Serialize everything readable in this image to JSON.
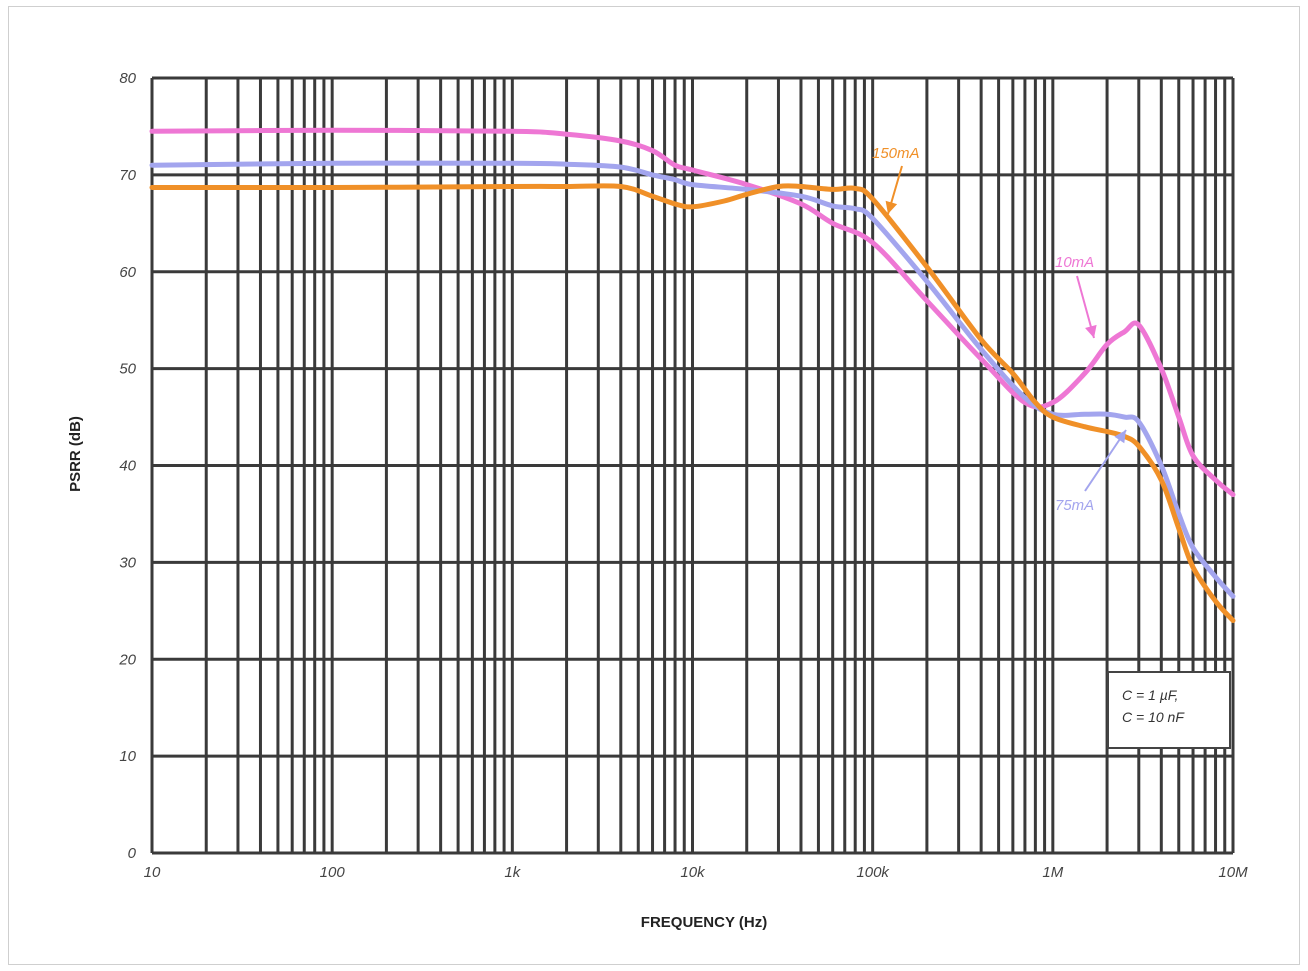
{
  "chart_data": {
    "type": "line",
    "title": "",
    "xlabel": "FREQUENCY (Hz)",
    "ylabel": "PSRR (dB)",
    "x_scale": "log",
    "xlim": [
      10,
      10000000
    ],
    "ylim": [
      0,
      80
    ],
    "grid": true,
    "x_tick_values": [
      10,
      100,
      1000,
      10000,
      100000,
      1000000,
      10000000
    ],
    "x_tick_labels": [
      "10",
      "100",
      "1k",
      "10k",
      "100k",
      "1M",
      "10M"
    ],
    "y_ticks": [
      0,
      10,
      20,
      30,
      40,
      50,
      60,
      70,
      80
    ],
    "series": [
      {
        "name": "10mA",
        "color": "#ee77d4",
        "x": [
          10,
          100,
          1000,
          2000,
          4000,
          6000,
          8000,
          10000,
          20000,
          40000,
          60000,
          100000,
          200000,
          400000,
          700000,
          1000000,
          1500000,
          2000000,
          2500000,
          3000000,
          4000000,
          5000000,
          6000000,
          8000000,
          10000000
        ],
        "y": [
          74.5,
          74.6,
          74.5,
          74.2,
          73.5,
          72.5,
          71,
          70.5,
          69,
          67,
          65,
          63,
          57,
          51,
          46.5,
          46.5,
          49.5,
          52.5,
          53.8,
          54.5,
          50,
          45,
          41,
          38.5,
          37
        ]
      },
      {
        "name": "75mA",
        "color": "#a3a5ee",
        "x": [
          10,
          100,
          1000,
          2000,
          4000,
          6000,
          8000,
          10000,
          20000,
          40000,
          60000,
          80000,
          100000,
          200000,
          400000,
          700000,
          1000000,
          1500000,
          2000000,
          2500000,
          3000000,
          4000000,
          5000000,
          6000000,
          8000000,
          10000000
        ],
        "y": [
          71,
          71.2,
          71.2,
          71.1,
          70.8,
          70,
          69.5,
          69,
          68.5,
          67.8,
          66.8,
          66.5,
          65.5,
          59,
          52,
          47,
          45.3,
          45.3,
          45.3,
          45,
          44.5,
          40,
          35,
          31.5,
          28.5,
          26.5
        ]
      },
      {
        "name": "150mA",
        "color": "#f09028",
        "x": [
          10,
          100,
          1000,
          2000,
          4000,
          6000,
          8000,
          10000,
          15000,
          20000,
          30000,
          40000,
          60000,
          80000,
          100000,
          200000,
          400000,
          600000,
          800000,
          1000000,
          1500000,
          2000000,
          2500000,
          3000000,
          4000000,
          5000000,
          6000000,
          8000000,
          10000000
        ],
        "y": [
          68.7,
          68.7,
          68.8,
          68.8,
          68.8,
          67.8,
          67.0,
          66.7,
          67.3,
          68.0,
          68.8,
          68.8,
          68.5,
          68.6,
          67.5,
          60.5,
          53,
          49.5,
          46.5,
          45.0,
          44.0,
          43.5,
          43.0,
          42.0,
          38.5,
          33.5,
          29.5,
          26.0,
          24.0
        ]
      }
    ],
    "annotations": [
      {
        "text": "150mA",
        "series": "150mA",
        "color": "#f09028"
      },
      {
        "text": "10mA",
        "series": "10mA",
        "color": "#ee77d4"
      },
      {
        "text": "75mA",
        "series": "75mA",
        "color": "#a3a5ee"
      }
    ],
    "note_box": {
      "line1": "C   =   1  µF,",
      "line2": "C   = 10 nF",
      "position": "bottom-right"
    },
    "styles": {
      "grid_color": "#3a3a3a",
      "line_width": "5"
    }
  }
}
